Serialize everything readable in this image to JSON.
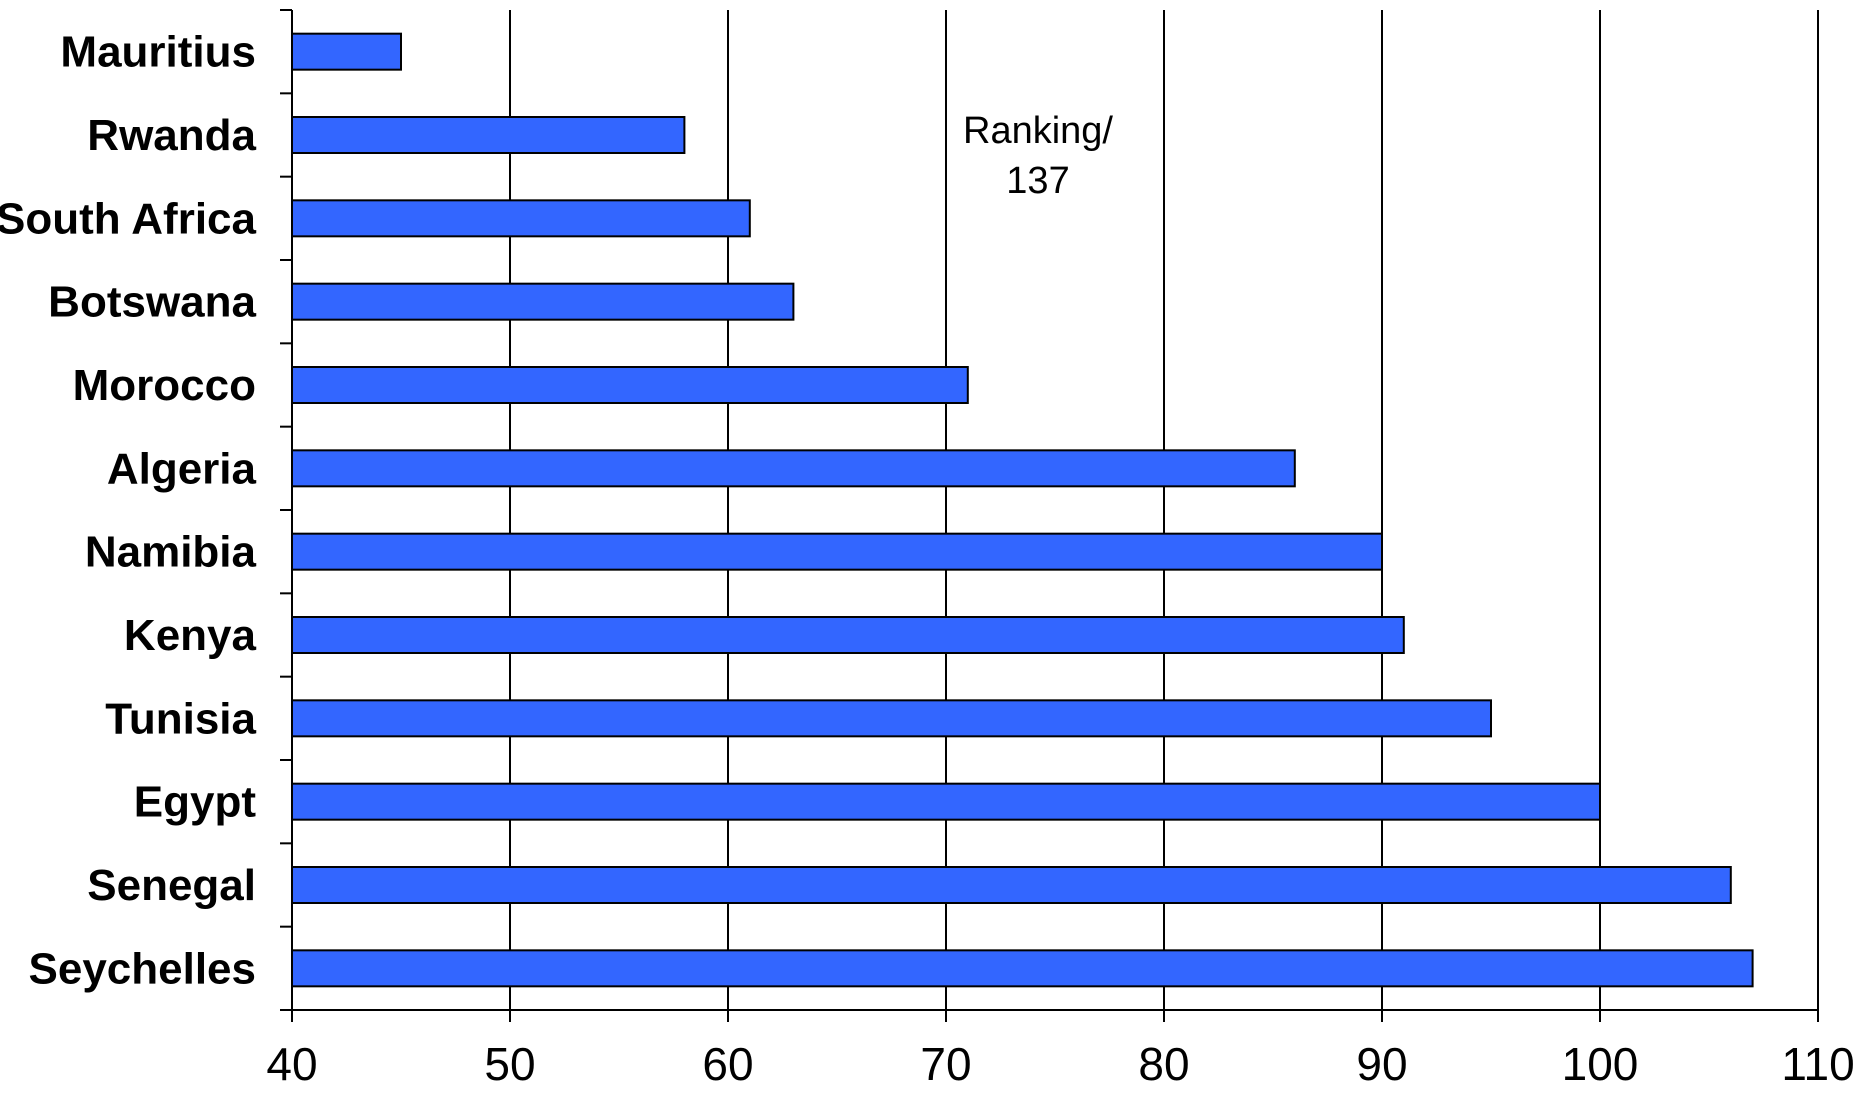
{
  "chart_data": {
    "type": "bar",
    "orientation": "horizontal",
    "categories": [
      "Mauritius",
      "Rwanda",
      "South Africa",
      "Botswana",
      "Morocco",
      "Algeria",
      "Namibia",
      "Kenya",
      "Tunisia",
      "Egypt",
      "Senegal",
      "Seychelles"
    ],
    "values": [
      45,
      58,
      61,
      63,
      71,
      86,
      90,
      91,
      95,
      100,
      106,
      107
    ],
    "title": "",
    "xlabel": "",
    "ylabel": "",
    "xlim": [
      40,
      110
    ],
    "x_ticks": [
      "40",
      "50",
      "60",
      "70",
      "80",
      "90",
      "100",
      "110"
    ],
    "grid": "vertical",
    "annotation": {
      "line1": "Ranking/",
      "line2": "137"
    },
    "colors": {
      "bar_fill": "#3366ff",
      "bar_stroke": "#000000",
      "grid": "#000000"
    }
  }
}
